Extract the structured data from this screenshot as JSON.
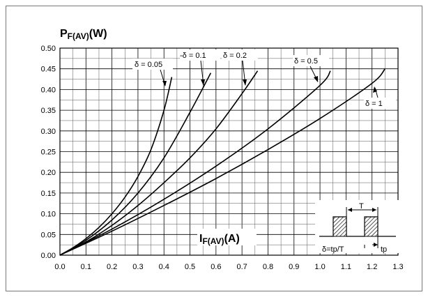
{
  "chart_data": {
    "type": "line",
    "ylabel_main": "P",
    "ylabel_sub": "F(AV)",
    "ylabel_unit": "(W)",
    "xlabel_main": "I",
    "xlabel_sub": "F(AV)",
    "xlabel_unit": "(A)",
    "xlim": [
      0.0,
      1.3
    ],
    "ylim": [
      0.0,
      0.5
    ],
    "x_ticks": [
      "0.0",
      "0.1",
      "0.2",
      "0.3",
      "0.4",
      "0.5",
      "0.6",
      "0.7",
      "0.8",
      "0.9",
      "1.0",
      "1.1",
      "1.2",
      "1.3"
    ],
    "y_ticks": [
      "0.00",
      "0.05",
      "0.10",
      "0.15",
      "0.20",
      "0.25",
      "0.30",
      "0.35",
      "0.40",
      "0.45",
      "0.50"
    ],
    "grid": true,
    "series": [
      {
        "name": "δ = 0.05",
        "x": [
          0,
          0.05,
          0.1,
          0.15,
          0.2,
          0.25,
          0.3,
          0.35,
          0.4,
          0.43
        ],
        "y": [
          0,
          0.018,
          0.04,
          0.067,
          0.1,
          0.14,
          0.19,
          0.255,
          0.35,
          0.43
        ]
      },
      {
        "name": "δ = 0.1",
        "x": [
          0,
          0.1,
          0.2,
          0.3,
          0.4,
          0.5,
          0.58
        ],
        "y": [
          0,
          0.036,
          0.085,
          0.15,
          0.235,
          0.345,
          0.44
        ]
      },
      {
        "name": "δ = 0.2",
        "x": [
          0,
          0.1,
          0.2,
          0.3,
          0.4,
          0.5,
          0.6,
          0.7,
          0.76
        ],
        "y": [
          0,
          0.032,
          0.072,
          0.12,
          0.175,
          0.235,
          0.305,
          0.39,
          0.445
        ]
      },
      {
        "name": "δ = 0.5",
        "x": [
          0,
          0.2,
          0.4,
          0.6,
          0.8,
          1.0,
          1.04
        ],
        "y": [
          0,
          0.063,
          0.135,
          0.215,
          0.305,
          0.41,
          0.445
        ]
      },
      {
        "name": "δ = 1",
        "x": [
          0,
          0.2,
          0.4,
          0.6,
          0.8,
          1.0,
          1.2,
          1.25
        ],
        "y": [
          0,
          0.058,
          0.12,
          0.185,
          0.255,
          0.33,
          0.415,
          0.45
        ]
      }
    ],
    "annotations": {
      "d005": "δ = 0.05",
      "d01": "δ = 0.1",
      "d02": "δ = 0.2",
      "d05": "δ = 0.5",
      "d1": "δ = 1"
    },
    "inset": {
      "period_label": "T",
      "duty_label": "δ=tp/T",
      "tp_label": "tp"
    }
  }
}
